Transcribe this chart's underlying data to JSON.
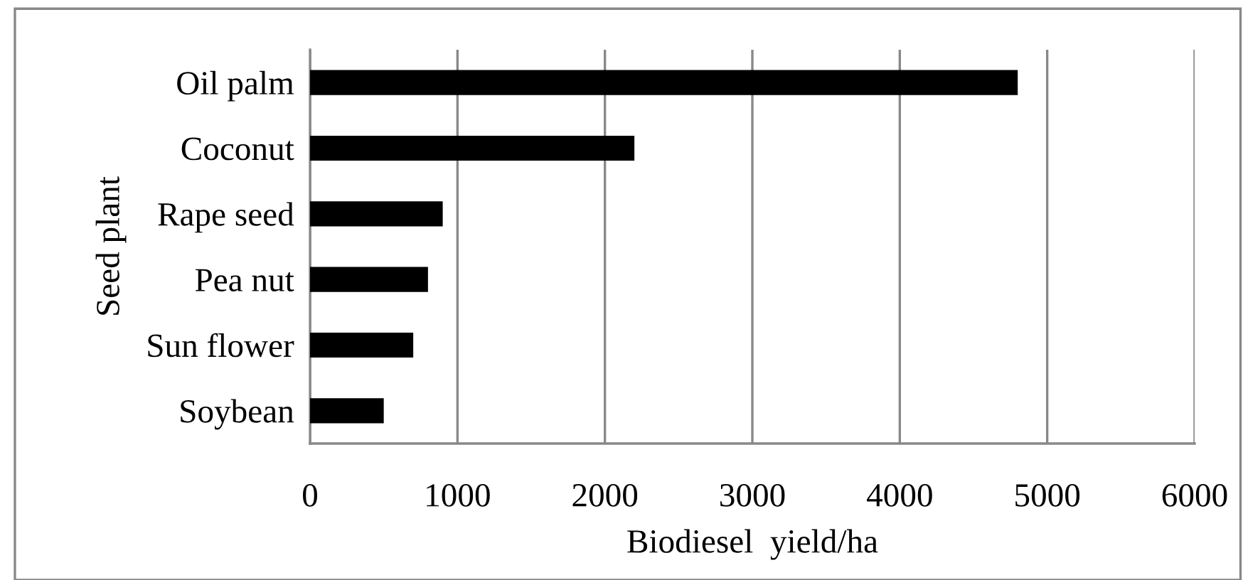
{
  "chart_data": {
    "type": "bar",
    "orientation": "horizontal",
    "xlabel": "Biodiesel  yield/ha",
    "ylabel": "Seed plant",
    "categories": [
      "Oil palm",
      "Coconut",
      "Rape seed",
      "Pea nut",
      "Sun flower",
      "Soybean"
    ],
    "values": [
      4800,
      2200,
      900,
      800,
      700,
      500
    ],
    "color": "#000000",
    "xlim": [
      0,
      6000
    ],
    "xticks": [
      0,
      1000,
      2000,
      3000,
      4000,
      5000,
      6000
    ],
    "grid": "x"
  }
}
